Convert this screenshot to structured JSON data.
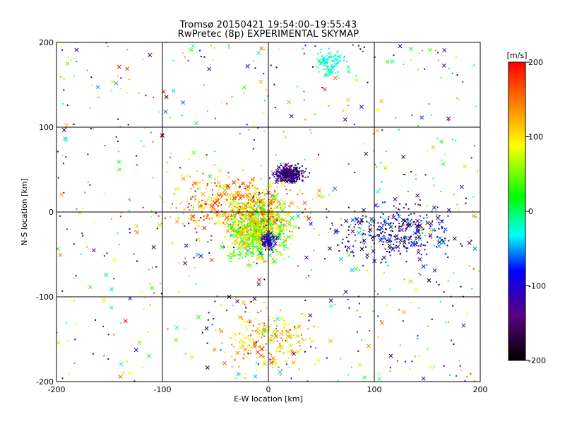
{
  "header": {
    "title_line1": "Tromsø 20150421 19:54:00–19:55:43",
    "title_line2": "RwPretec (8p) EXPERIMENTAL SKYMAP"
  },
  "chart_data": {
    "type": "scatter",
    "xlabel": "E-W location [km]",
    "ylabel": "N-S location [km]",
    "xlim": [
      -200,
      200
    ],
    "ylim": [
      -200,
      200
    ],
    "xticks": [
      "-200",
      "-100",
      "0",
      "100",
      "200"
    ],
    "yticks": [
      "-200",
      "-100",
      "0",
      "100",
      "200"
    ],
    "grid": true,
    "markers": [
      "dot",
      "cross"
    ],
    "colorbar": {
      "label": "[m/s]",
      "range": [
        -200,
        200
      ],
      "ticks": [
        "200",
        "100",
        "0",
        "-100",
        "-200"
      ],
      "colormap": [
        "#000000",
        "#5a0080",
        "#0000ff",
        "#00ffff",
        "#00ff00",
        "#ffff00",
        "#ff0000"
      ]
    },
    "clusters": [
      {
        "x": [
          -50,
          30
        ],
        "y": [
          -70,
          30
        ],
        "v": [
          -10,
          140
        ],
        "n": 900
      },
      {
        "x": [
          -120,
          60
        ],
        "y": [
          -40,
          60
        ],
        "v": [
          60,
          200
        ],
        "n": 450
      },
      {
        "x": [
          0,
          40
        ],
        "y": [
          30,
          60
        ],
        "v": [
          -200,
          -90
        ],
        "n": 260
      },
      {
        "x": [
          40,
          200
        ],
        "y": [
          -70,
          20
        ],
        "v": [
          -200,
          -40
        ],
        "n": 330
      },
      {
        "x": [
          -10,
          10
        ],
        "y": [
          -50,
          -20
        ],
        "v": [
          -120,
          -70
        ],
        "n": 80
      },
      {
        "x": [
          40,
          80
        ],
        "y": [
          150,
          200
        ],
        "v": [
          -40,
          0
        ],
        "n": 90
      },
      {
        "x": [
          -60,
          60
        ],
        "y": [
          -200,
          -100
        ],
        "v": [
          60,
          180
        ],
        "n": 220
      },
      {
        "x": [
          -200,
          200
        ],
        "y": [
          -200,
          200
        ],
        "v": [
          -200,
          200
        ],
        "n": 700
      }
    ]
  }
}
